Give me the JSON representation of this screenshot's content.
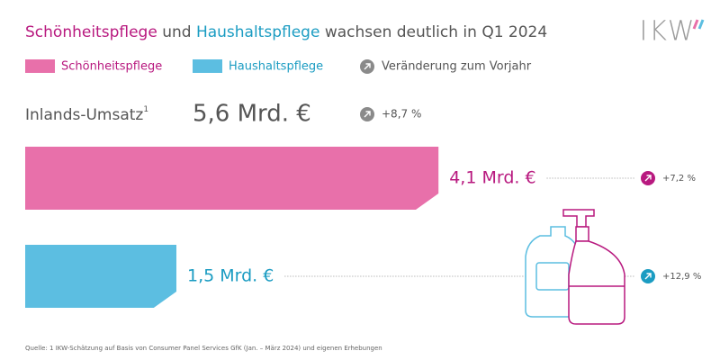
{
  "chart_data": {
    "type": "bar",
    "title_parts": [
      "Schönheitspflege",
      "und",
      "Haushaltspflege",
      "wachsen deutlich in Q1 2024"
    ],
    "logo": "IKW",
    "categories": [
      "Schönheitspflege",
      "Haushaltspflege"
    ],
    "values": [
      4.1,
      1.5
    ],
    "value_labels": [
      "4,1 Mrd. €",
      "1,5 Mrd. €"
    ],
    "colors": [
      "#e870aa",
      "#5cbee1"
    ],
    "text_colors": [
      "#b8197f",
      "#1b9cc2"
    ],
    "change_labels": [
      "+7,2 %",
      "+12,9 %"
    ],
    "change_legend": "Veränderung zum Vorjahr",
    "total_title": "Inlands-Umsatz",
    "total_footnote_mark": "1",
    "total_label": "5,6 Mrd. €",
    "total_change_label": "+8,7 %",
    "source": "Quelle: 1 IKW-Schätzung auf Basis von Consumer Panel Services GfK (Jan. – März 2024) und eigenen Erhebungen"
  }
}
